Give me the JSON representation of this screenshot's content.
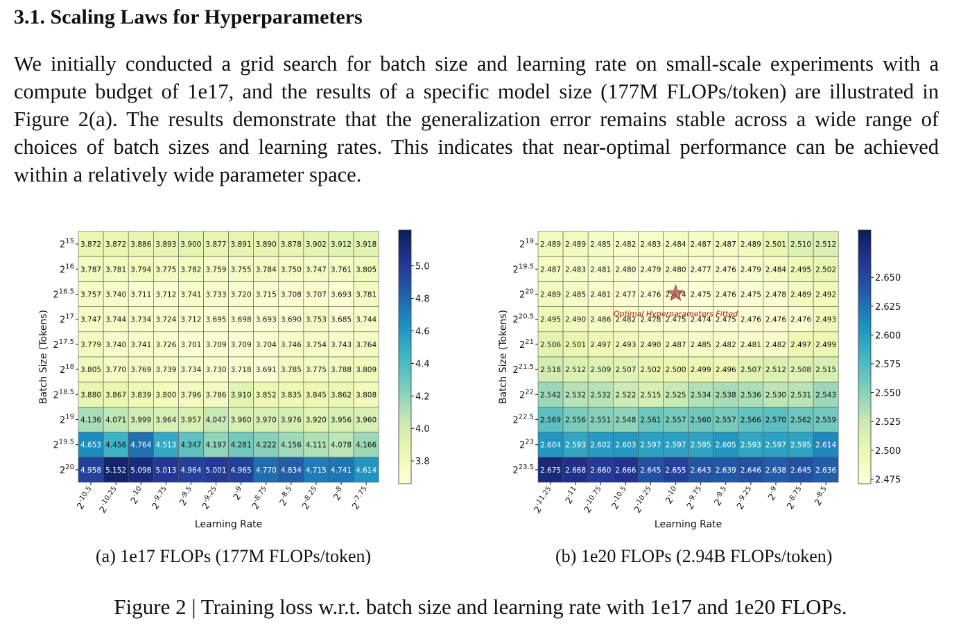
{
  "section": {
    "heading": "3.1.  Scaling Laws for Hyperparameters",
    "paragraph": "We initially conducted a grid search for batch size and learning rate on small-scale experiments with a compute budget of 1e17, and the results of a specific model size (177M FLOPs/token) are illustrated in Figure 2(a). The results demonstrate that the generalization error remains stable across a wide range of choices of batch sizes and learning rates. This indicates that near-optimal performance can be achieved within a relatively wide parameter space."
  },
  "figure": {
    "caption": "Figure 2 | Training loss w.r.t. batch size and learning rate with 1e17 and 1e20 FLOPs.",
    "subcaption_a": "(a) 1e17 FLOPs (177M FLOPs/token)",
    "subcaption_b": "(b) 1e20 FLOPs (2.94B FLOPs/token)"
  },
  "chart_data": [
    {
      "type": "heatmap",
      "xlabel": "Learning Rate",
      "ylabel": "Batch Size (Tokens)",
      "x_exponents": [
        "-10.5",
        "-10.25",
        "-10",
        "-9.75",
        "-9.5",
        "-9.25",
        "-9",
        "-8.75",
        "-8.5",
        "-8.25",
        "-8",
        "-7.75"
      ],
      "y_exponents": [
        "15",
        "16",
        "16.5",
        "17",
        "17.5",
        "18",
        "18.5",
        "19",
        "19.5",
        "20"
      ],
      "values": [
        [
          3.872,
          3.872,
          3.886,
          3.893,
          3.9,
          3.877,
          3.891,
          3.89,
          3.878,
          3.902,
          3.912,
          3.918
        ],
        [
          3.787,
          3.781,
          3.794,
          3.775,
          3.782,
          3.759,
          3.755,
          3.784,
          3.75,
          3.747,
          3.761,
          3.805
        ],
        [
          3.757,
          3.74,
          3.711,
          3.712,
          3.741,
          3.733,
          3.72,
          3.715,
          3.708,
          3.707,
          3.693,
          3.781
        ],
        [
          3.747,
          3.744,
          3.734,
          3.724,
          3.712,
          3.695,
          3.698,
          3.693,
          3.69,
          3.753,
          3.685,
          3.744
        ],
        [
          3.779,
          3.74,
          3.741,
          3.726,
          3.701,
          3.709,
          3.709,
          3.704,
          3.746,
          3.754,
          3.743,
          3.764
        ],
        [
          3.805,
          3.77,
          3.769,
          3.739,
          3.734,
          3.73,
          3.718,
          3.691,
          3.785,
          3.775,
          3.788,
          3.809
        ],
        [
          3.88,
          3.867,
          3.839,
          3.8,
          3.796,
          3.786,
          3.91,
          3.852,
          3.835,
          3.845,
          3.862,
          3.808
        ],
        [
          4.136,
          4.071,
          3.999,
          3.964,
          3.957,
          4.047,
          3.96,
          3.97,
          3.976,
          3.92,
          3.956,
          3.96
        ],
        [
          4.653,
          4.456,
          4.764,
          4.513,
          4.347,
          4.197,
          4.281,
          4.222,
          4.156,
          4.111,
          4.078,
          4.166
        ],
        [
          4.958,
          5.152,
          5.098,
          5.013,
          4.964,
          5.001,
          4.965,
          4.77,
          4.834,
          4.715,
          4.741,
          4.614
        ]
      ],
      "colorbar": {
        "min": 3.66,
        "max": 5.22,
        "ticks": [
          3.8,
          4.0,
          4.2,
          4.4,
          4.6,
          4.8,
          5.0
        ],
        "tick_labels": [
          "3.8",
          "4.0",
          "4.2",
          "4.4",
          "4.6",
          "4.8",
          "5.0"
        ]
      },
      "colormap": "YlGnBu"
    },
    {
      "type": "heatmap",
      "xlabel": "Learning Rate",
      "ylabel": "Batch Size (Tokens)",
      "x_exponents": [
        "-11.25",
        "-11",
        "-10.75",
        "-10.5",
        "-10.25",
        "-10",
        "-9.75",
        "-9.5",
        "-9.25",
        "-9",
        "-8.75",
        "-8.5"
      ],
      "y_exponents": [
        "19",
        "19.5",
        "20",
        "20.5",
        "21",
        "21.5",
        "22",
        "22.5",
        "23",
        "23.5"
      ],
      "values": [
        [
          2.489,
          2.489,
          2.485,
          2.482,
          2.483,
          2.484,
          2.487,
          2.487,
          2.489,
          2.501,
          2.51,
          2.512
        ],
        [
          2.487,
          2.483,
          2.481,
          2.48,
          2.479,
          2.48,
          2.477,
          2.476,
          2.479,
          2.484,
          2.495,
          2.502
        ],
        [
          2.489,
          2.485,
          2.481,
          2.477,
          2.476,
          2.474,
          2.475,
          2.476,
          2.475,
          2.478,
          2.489,
          2.492
        ],
        [
          2.495,
          2.49,
          2.486,
          2.482,
          2.478,
          2.475,
          2.474,
          2.475,
          2.476,
          2.476,
          2.476,
          2.493
        ],
        [
          2.506,
          2.501,
          2.497,
          2.493,
          2.49,
          2.487,
          2.485,
          2.482,
          2.481,
          2.482,
          2.497,
          2.499
        ],
        [
          2.518,
          2.512,
          2.509,
          2.507,
          2.502,
          2.5,
          2.499,
          2.496,
          2.507,
          2.512,
          2.508,
          2.515
        ],
        [
          2.542,
          2.532,
          2.532,
          2.522,
          2.515,
          2.525,
          2.534,
          2.538,
          2.536,
          2.53,
          2.531,
          2.543
        ],
        [
          2.569,
          2.556,
          2.551,
          2.548,
          2.561,
          2.557,
          2.56,
          2.557,
          2.566,
          2.57,
          2.562,
          2.559
        ],
        [
          2.604,
          2.593,
          2.602,
          2.603,
          2.597,
          2.597,
          2.595,
          2.605,
          2.593,
          2.597,
          2.595,
          2.614
        ],
        [
          2.675,
          2.668,
          2.66,
          2.666,
          2.645,
          2.655,
          2.643,
          2.639,
          2.646,
          2.638,
          2.645,
          2.636
        ]
      ],
      "colorbar": {
        "min": 2.471,
        "max": 2.691,
        "ticks": [
          2.475,
          2.5,
          2.525,
          2.55,
          2.575,
          2.6,
          2.625,
          2.65
        ],
        "tick_labels": [
          "2.475",
          "2.500",
          "2.525",
          "2.550",
          "2.575",
          "2.600",
          "2.625",
          "2.650"
        ]
      },
      "colormap": "YlGnBu",
      "annotation": {
        "text": "Optimal Hyperparameters Fitted",
        "marker": "star",
        "row": 2,
        "col": 5
      }
    }
  ]
}
